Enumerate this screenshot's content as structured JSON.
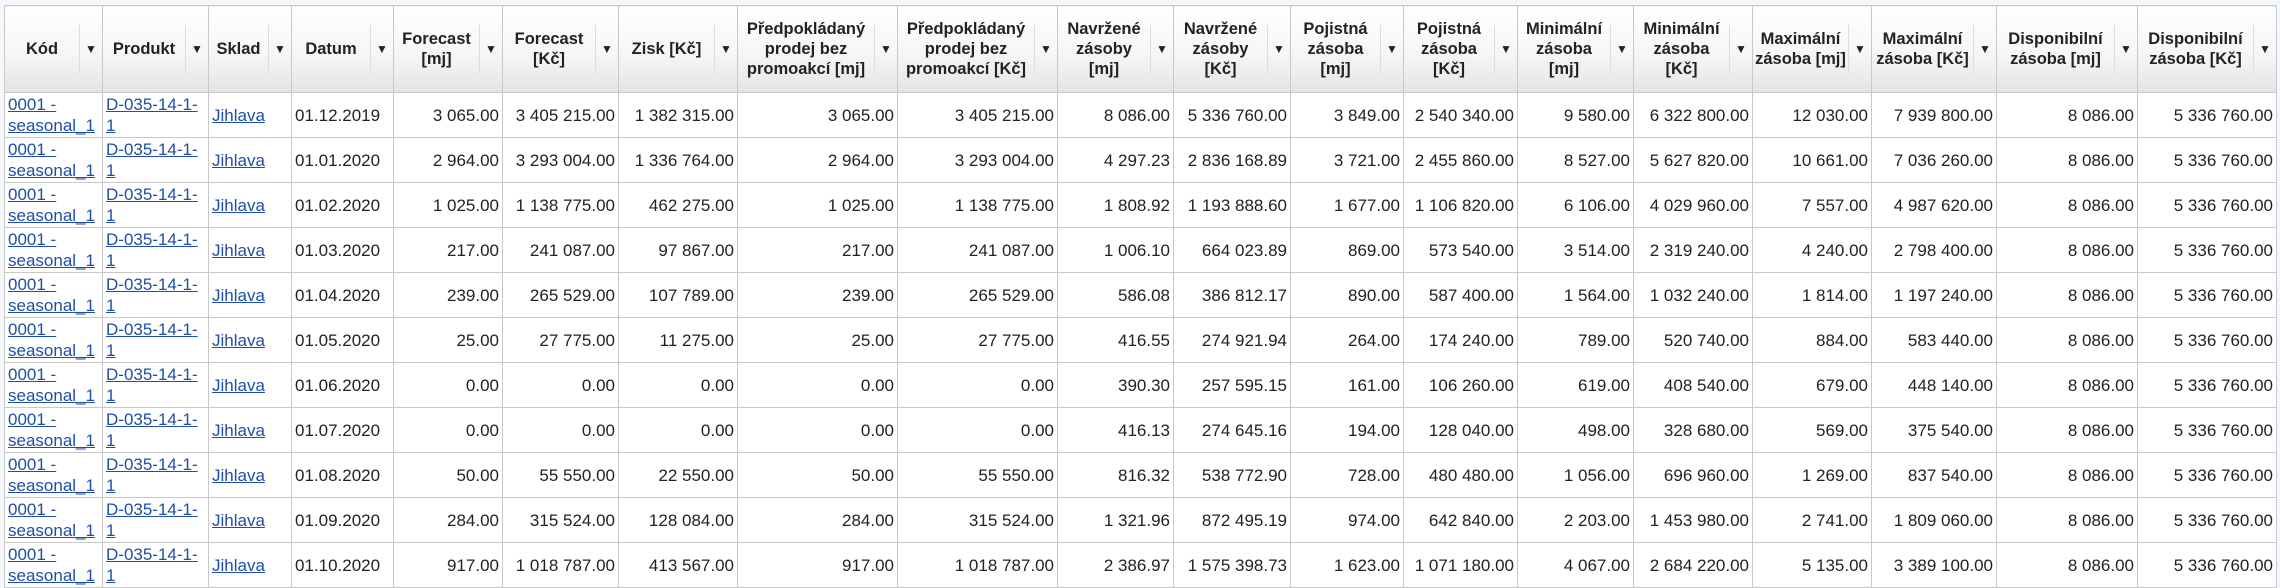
{
  "table": {
    "columns": [
      {
        "label": "Kód"
      },
      {
        "label": "Produkt"
      },
      {
        "label": "Sklad"
      },
      {
        "label": "Datum"
      },
      {
        "label": "Forecast [mj]"
      },
      {
        "label": "Forecast [Kč]"
      },
      {
        "label": "Zisk [Kč]"
      },
      {
        "label": "Předpokládaný prodej bez promoakcí [mj]"
      },
      {
        "label": "Předpokládaný prodej bez promoakcí [Kč]"
      },
      {
        "label": "Navržené zásoby [mj]"
      },
      {
        "label": "Navržené zásoby [Kč]"
      },
      {
        "label": "Pojistná zásoba [mj]"
      },
      {
        "label": "Pojistná zásoba [Kč]"
      },
      {
        "label": "Minimální zásoba [mj]"
      },
      {
        "label": "Minimální zásoba [Kč]"
      },
      {
        "label": "Maximální zásoba [mj]"
      },
      {
        "label": "Maximální zásoba [Kč]"
      },
      {
        "label": "Disponibilní zásoba [mj]"
      },
      {
        "label": "Disponibilní zásoba [Kč]"
      }
    ],
    "filter_icon": "triangle-down",
    "link_color": "#1f4ea8",
    "rows": [
      [
        "0001 - seasonal_1",
        "D-035-14-1-1",
        "Jihlava",
        "01.12.2019",
        "3 065.00",
        "3 405 215.00",
        "1 382 315.00",
        "3 065.00",
        "3 405 215.00",
        "8 086.00",
        "5 336 760.00",
        "3 849.00",
        "2 540 340.00",
        "9 580.00",
        "6 322 800.00",
        "12 030.00",
        "7 939 800.00",
        "8 086.00",
        "5 336 760.00"
      ],
      [
        "0001 - seasonal_1",
        "D-035-14-1-1",
        "Jihlava",
        "01.01.2020",
        "2 964.00",
        "3 293 004.00",
        "1 336 764.00",
        "2 964.00",
        "3 293 004.00",
        "4 297.23",
        "2 836 168.89",
        "3 721.00",
        "2 455 860.00",
        "8 527.00",
        "5 627 820.00",
        "10 661.00",
        "7 036 260.00",
        "8 086.00",
        "5 336 760.00"
      ],
      [
        "0001 - seasonal_1",
        "D-035-14-1-1",
        "Jihlava",
        "01.02.2020",
        "1 025.00",
        "1 138 775.00",
        "462 275.00",
        "1 025.00",
        "1 138 775.00",
        "1 808.92",
        "1 193 888.60",
        "1 677.00",
        "1 106 820.00",
        "6 106.00",
        "4 029 960.00",
        "7 557.00",
        "4 987 620.00",
        "8 086.00",
        "5 336 760.00"
      ],
      [
        "0001 - seasonal_1",
        "D-035-14-1-1",
        "Jihlava",
        "01.03.2020",
        "217.00",
        "241 087.00",
        "97 867.00",
        "217.00",
        "241 087.00",
        "1 006.10",
        "664 023.89",
        "869.00",
        "573 540.00",
        "3 514.00",
        "2 319 240.00",
        "4 240.00",
        "2 798 400.00",
        "8 086.00",
        "5 336 760.00"
      ],
      [
        "0001 - seasonal_1",
        "D-035-14-1-1",
        "Jihlava",
        "01.04.2020",
        "239.00",
        "265 529.00",
        "107 789.00",
        "239.00",
        "265 529.00",
        "586.08",
        "386 812.17",
        "890.00",
        "587 400.00",
        "1 564.00",
        "1 032 240.00",
        "1 814.00",
        "1 197 240.00",
        "8 086.00",
        "5 336 760.00"
      ],
      [
        "0001 - seasonal_1",
        "D-035-14-1-1",
        "Jihlava",
        "01.05.2020",
        "25.00",
        "27 775.00",
        "11 275.00",
        "25.00",
        "27 775.00",
        "416.55",
        "274 921.94",
        "264.00",
        "174 240.00",
        "789.00",
        "520 740.00",
        "884.00",
        "583 440.00",
        "8 086.00",
        "5 336 760.00"
      ],
      [
        "0001 - seasonal_1",
        "D-035-14-1-1",
        "Jihlava",
        "01.06.2020",
        "0.00",
        "0.00",
        "0.00",
        "0.00",
        "0.00",
        "390.30",
        "257 595.15",
        "161.00",
        "106 260.00",
        "619.00",
        "408 540.00",
        "679.00",
        "448 140.00",
        "8 086.00",
        "5 336 760.00"
      ],
      [
        "0001 - seasonal_1",
        "D-035-14-1-1",
        "Jihlava",
        "01.07.2020",
        "0.00",
        "0.00",
        "0.00",
        "0.00",
        "0.00",
        "416.13",
        "274 645.16",
        "194.00",
        "128 040.00",
        "498.00",
        "328 680.00",
        "569.00",
        "375 540.00",
        "8 086.00",
        "5 336 760.00"
      ],
      [
        "0001 - seasonal_1",
        "D-035-14-1-1",
        "Jihlava",
        "01.08.2020",
        "50.00",
        "55 550.00",
        "22 550.00",
        "50.00",
        "55 550.00",
        "816.32",
        "538 772.90",
        "728.00",
        "480 480.00",
        "1 056.00",
        "696 960.00",
        "1 269.00",
        "837 540.00",
        "8 086.00",
        "5 336 760.00"
      ],
      [
        "0001 - seasonal_1",
        "D-035-14-1-1",
        "Jihlava",
        "01.09.2020",
        "284.00",
        "315 524.00",
        "128 084.00",
        "284.00",
        "315 524.00",
        "1 321.96",
        "872 495.19",
        "974.00",
        "642 840.00",
        "2 203.00",
        "1 453 980.00",
        "2 741.00",
        "1 809 060.00",
        "8 086.00",
        "5 336 760.00"
      ],
      [
        "0001 - seasonal_1",
        "D-035-14-1-1",
        "Jihlava",
        "01.10.2020",
        "917.00",
        "1 018 787.00",
        "413 567.00",
        "917.00",
        "1 018 787.00",
        "2 386.97",
        "1 575 398.73",
        "1 623.00",
        "1 071 180.00",
        "4 067.00",
        "2 684 220.00",
        "5 135.00",
        "3 389 100.00",
        "8 086.00",
        "5 336 760.00"
      ]
    ]
  }
}
